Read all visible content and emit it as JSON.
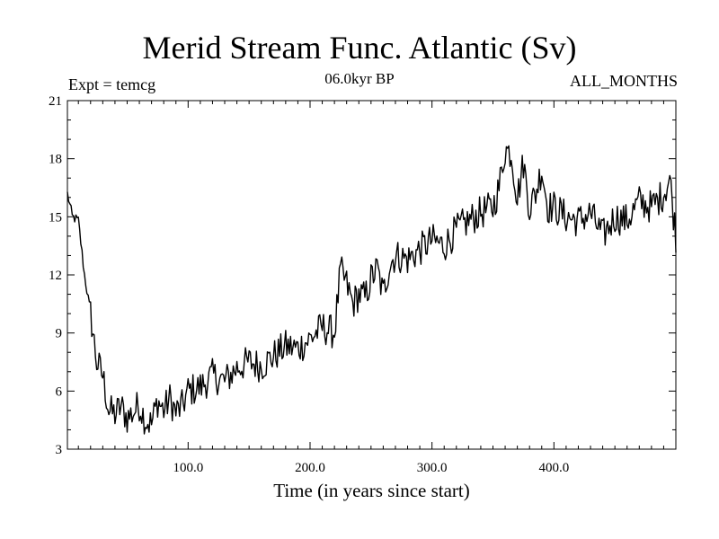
{
  "chart_data": {
    "type": "line",
    "title": "Merid Stream Func. Atlantic (Sv)",
    "subtitle": "06.0kyr BP",
    "left_label": "Expt = temcg",
    "right_label": "ALL_MONTHS",
    "xlabel": "Time (in years since start)",
    "ylabel": "",
    "xlim": [
      1,
      500
    ],
    "ylim": [
      3,
      21
    ],
    "x_ticks": [
      100,
      200,
      300,
      400
    ],
    "x_tick_labels": [
      "100.0",
      "200.0",
      "300.0",
      "400.0"
    ],
    "y_ticks": [
      3,
      6,
      9,
      12,
      15,
      18,
      21
    ],
    "y_tick_labels": [
      "3",
      "6",
      "9",
      "12",
      "15",
      "18",
      "21"
    ],
    "grid": false,
    "series": [
      {
        "name": "Merid Stream Func. Atlantic",
        "color": "#000000",
        "x": [
          1,
          5,
          10,
          15,
          20,
          25,
          30,
          35,
          40,
          45,
          50,
          55,
          60,
          65,
          70,
          75,
          80,
          85,
          90,
          95,
          100,
          110,
          120,
          130,
          140,
          150,
          160,
          170,
          180,
          190,
          200,
          210,
          220,
          225,
          230,
          235,
          240,
          245,
          250,
          255,
          260,
          265,
          270,
          280,
          290,
          300,
          310,
          320,
          330,
          340,
          350,
          355,
          360,
          365,
          370,
          375,
          380,
          385,
          390,
          395,
          400,
          410,
          420,
          430,
          440,
          450,
          460,
          470,
          480,
          490,
          495,
          500
        ],
        "values": [
          16.2,
          15.0,
          14.8,
          12.0,
          10.0,
          7.5,
          6.8,
          5.0,
          4.8,
          5.2,
          4.6,
          4.9,
          5.3,
          4.5,
          4.3,
          5.5,
          5.0,
          5.6,
          4.9,
          5.2,
          6.0,
          6.2,
          6.8,
          6.5,
          7.2,
          7.5,
          7.3,
          7.8,
          8.3,
          8.2,
          8.7,
          9.3,
          9.0,
          12.2,
          11.5,
          10.5,
          11.0,
          10.8,
          11.8,
          12.3,
          11.0,
          12.5,
          13.0,
          12.8,
          13.3,
          13.8,
          13.5,
          14.3,
          14.8,
          15.2,
          15.5,
          16.5,
          18.5,
          18.3,
          16.0,
          17.8,
          15.5,
          16.2,
          17.5,
          15.5,
          15.5,
          15.0,
          14.8,
          15.2,
          14.0,
          15.0,
          14.8,
          15.8,
          15.5,
          16.2,
          17.0,
          14.0
        ]
      }
    ]
  }
}
